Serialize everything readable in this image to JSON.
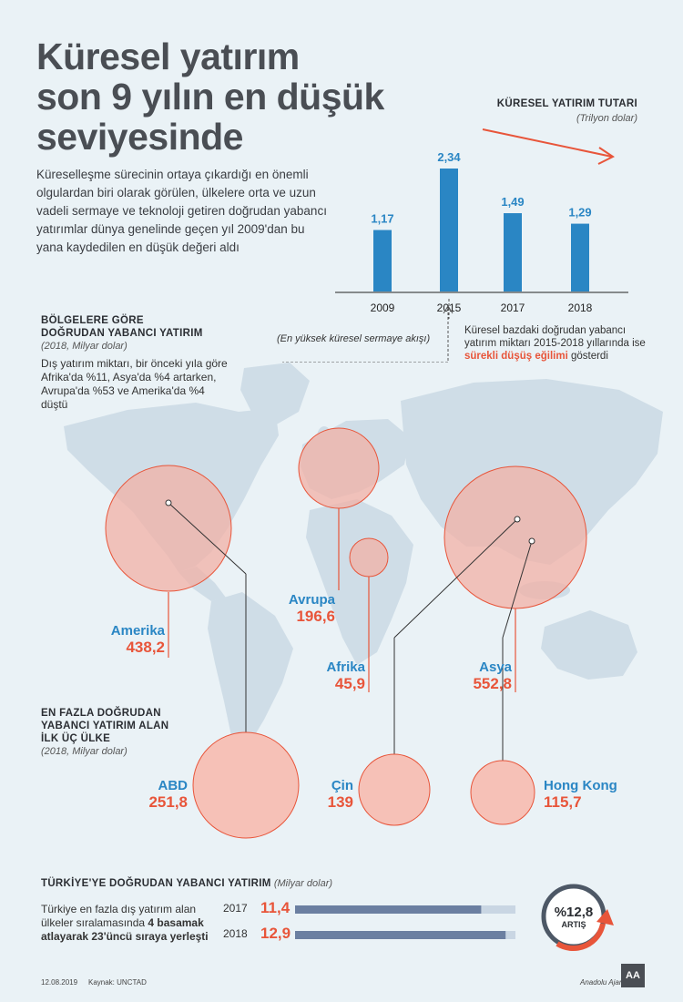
{
  "title_lines": [
    "Küresel yatırım",
    "son 9 yılın en düşük",
    "seviyesinde"
  ],
  "intro": "Küreselleşme sürecinin ortaya çıkardığı en önemli olgulardan biri olarak görülen, ülkelere orta ve uzun vadeli sermaye ve teknoloji getiren doğrudan yabancı yatırımlar dünya genelinde geçen yıl 2009'dan bu yana kaydedilen en düşük değeri aldı",
  "chart_title": "KÜRESEL YATIRIM TUTARI",
  "chart_unit": "(Trilyon dolar)",
  "chart_data": [
    {
      "type": "bar",
      "title": "KÜRESEL YATIRIM TUTARI",
      "subtitle": "(Trilyon dolar)",
      "categories": [
        "2009",
        "2015",
        "2017",
        "2018"
      ],
      "values": [
        1.17,
        2.34,
        1.49,
        1.29
      ],
      "value_labels": [
        "1,17",
        "2,34",
        "1,49",
        "1,29"
      ],
      "ylim": [
        0,
        2.6
      ],
      "color": "#2a86c4",
      "annotation": "(En yüksek küresel sermaye akışı)"
    },
    {
      "type": "bubble",
      "title": "BÖLGELERE GÖRE DOĞRUDAN YABANCI YATIRIM",
      "subtitle": "(2018, Milyar dolar)",
      "categories": [
        "Amerika",
        "Avrupa",
        "Afrika",
        "Asya"
      ],
      "values": [
        438.2,
        196.6,
        45.9,
        552.8
      ],
      "value_labels": [
        "438,2",
        "196,6",
        "45,9",
        "552,8"
      ]
    },
    {
      "type": "bubble",
      "title": "EN FAZLA DOĞRUDAN YABANCI YATIRIM ALAN İLK ÜÇ ÜLKE",
      "subtitle": "(2018, Milyar dolar)",
      "categories": [
        "ABD",
        "Çin",
        "Hong Kong"
      ],
      "values": [
        251.8,
        139,
        115.7
      ],
      "value_labels": [
        "251,8",
        "139",
        "115,7"
      ]
    },
    {
      "type": "bar",
      "title": "TÜRKİYE'YE DOĞRUDAN YABANCI YATIRIM",
      "subtitle": "(Milyar dolar)",
      "categories": [
        "2017",
        "2018"
      ],
      "values": [
        11.4,
        12.9
      ],
      "value_labels": [
        "11,4",
        "12,9"
      ]
    }
  ],
  "annotation": "(En yüksek küresel sermaye akışı)",
  "note": {
    "pre": "Küresel bazdaki doğrudan yabancı yatırım miktarı 2015-2018 yıllarında ise ",
    "highlight": "sürekli düşüş eğilimi",
    "post": " gösterdi"
  },
  "regions_section": {
    "title_lines": [
      "BÖLGELERE GÖRE",
      "DOĞRUDAN YABANCI YATIRIM"
    ],
    "unit": "(2018, Milyar dolar)",
    "desc": "Dış yatırım miktarı, bir önceki yıla göre Afrika'da %11, Asya'da %4 artarken, Avrupa'da %53 ve Amerika'da %4 düştü"
  },
  "countries_section": {
    "title_lines": [
      "EN FAZLA DOĞRUDAN",
      "YABANCI YATIRIM ALAN",
      "İLK ÜÇ ÜLKE"
    ],
    "unit": "(2018, Milyar dolar)"
  },
  "turkey": {
    "title": "TÜRKİYE'YE DOĞRUDAN YABANCI YATIRIM",
    "unit": "(Milyar dolar)",
    "desc_pre": "Türkiye en fazla dış yatırım alan ülkeler sıralamasında ",
    "desc_bold": "4 basamak atlayarak 23'üncü sıraya yerleşti",
    "rows": [
      {
        "year": "2017",
        "value": "11,4",
        "num": 11.4
      },
      {
        "year": "2018",
        "value": "12,9",
        "num": 12.9
      }
    ],
    "badge_value": "%12,8",
    "badge_label": "ARTIŞ"
  },
  "footer": {
    "date": "12.08.2019",
    "source": "Kaynak: UNCTAD",
    "agency": "Anadolu Ajansı",
    "logo_text": "AA"
  },
  "colors": {
    "accent_blue": "#2a86c4",
    "accent_red": "#e8553a",
    "bubble_fill": "#f2b0a6",
    "map_fill": "#cfdde7",
    "background": "#eaf2f6"
  }
}
